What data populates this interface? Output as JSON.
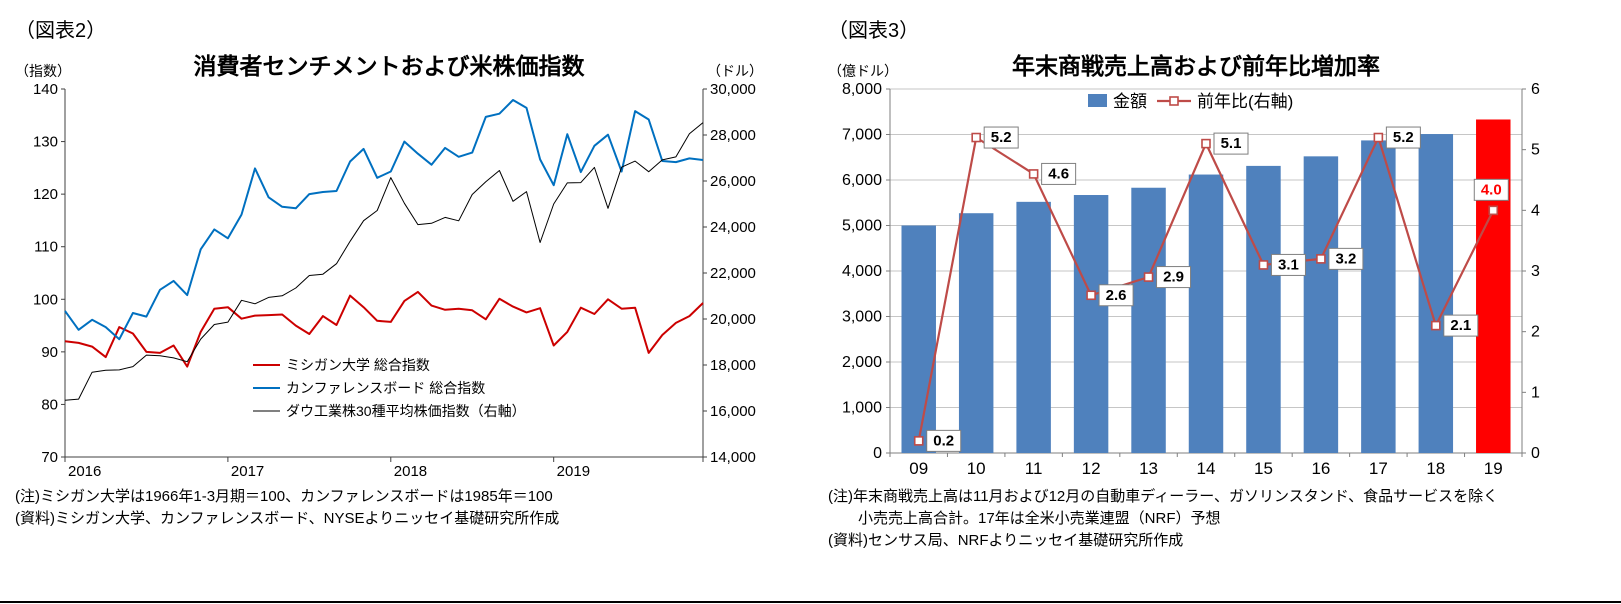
{
  "figure2": {
    "tag": "（図表2）",
    "title": "消費者センチメントおよび米株価指数",
    "left_unit": "（指数）",
    "right_unit": "（ドル）",
    "notes": [
      "(注)ミシガン大学は1966年1-3月期＝100、カンファレンスボードは1985年＝100",
      "(資料)ミシガン大学、カンファレンスボード、NYSEよりニッセイ基礎研究所作成"
    ],
    "chart_data": {
      "type": "line",
      "x_years": [
        "2016",
        "2017",
        "2018",
        "2019"
      ],
      "months_per_year": 12,
      "ylim_left": [
        70,
        140
      ],
      "yticks_left": [
        70,
        80,
        90,
        100,
        110,
        120,
        130,
        140
      ],
      "ylim_right": [
        14000,
        30000
      ],
      "yticks_right": [
        14000,
        16000,
        18000,
        20000,
        22000,
        24000,
        26000,
        28000,
        30000
      ],
      "grid": false,
      "legend_position": "inside-lower-center",
      "series": [
        {
          "name": "ミシガン大学 総合指数",
          "axis": "left",
          "color": "#CC0000",
          "width": 2,
          "values": [
            92.0,
            91.7,
            91.0,
            89.0,
            94.7,
            93.5,
            90.0,
            89.8,
            91.2,
            87.2,
            93.8,
            98.2,
            98.5,
            96.3,
            96.9,
            97.0,
            97.1,
            95.0,
            93.4,
            96.8,
            95.1,
            100.7,
            98.5,
            95.9,
            95.7,
            99.7,
            101.4,
            98.8,
            98.0,
            98.2,
            97.9,
            96.2,
            100.1,
            98.6,
            97.5,
            98.3,
            91.2,
            93.8,
            98.4,
            97.2,
            100.0,
            98.2,
            98.4,
            89.8,
            93.2,
            95.5,
            96.8,
            99.3
          ]
        },
        {
          "name": "カンファレンスボード 総合指数",
          "axis": "left",
          "color": "#0070C0",
          "width": 2,
          "values": [
            97.8,
            94.2,
            96.1,
            94.7,
            92.4,
            97.4,
            96.7,
            101.8,
            103.5,
            100.8,
            109.5,
            113.3,
            111.6,
            116.1,
            124.9,
            119.4,
            117.6,
            117.3,
            120.0,
            120.4,
            120.6,
            126.2,
            128.6,
            123.1,
            124.3,
            130.0,
            127.7,
            125.6,
            128.8,
            127.1,
            127.9,
            134.7,
            135.3,
            137.9,
            136.4,
            126.6,
            121.7,
            131.4,
            124.2,
            129.2,
            131.3,
            124.3,
            135.8,
            134.2,
            126.3,
            126.1,
            126.8,
            126.5
          ]
        },
        {
          "name": "ダウ工業株30種平均株価指数（右軸）",
          "axis": "right",
          "color": "#000000",
          "width": 1,
          "values": [
            16466,
            16517,
            17685,
            17774,
            17787,
            17930,
            18432,
            18401,
            18308,
            18142,
            19124,
            19763,
            19864,
            20812,
            20663,
            20941,
            21009,
            21350,
            21891,
            21948,
            22405,
            23377,
            24272,
            24719,
            26149,
            25029,
            24103,
            24163,
            24416,
            24271,
            25415,
            25965,
            26458,
            25116,
            25538,
            23327,
            25000,
            25916,
            25929,
            26593,
            24815,
            26600,
            26864,
            26403,
            26917,
            27046,
            28051,
            28538
          ]
        }
      ]
    }
  },
  "figure3": {
    "tag": "（図表3）",
    "title": "年末商戦売上高および前年比増加率",
    "left_unit": "（億ドル）",
    "notes": [
      "(注)年末商戦売上高は11月および12月の自動車ディーラー、ガソリンスタンド、食品サービスを除く",
      "　　小売売上高合計。17年は全米小売業連盟（NRF）予想",
      "(資料)センサス局、NRFよりニッセイ基礎研究所作成"
    ],
    "chart_data": {
      "type": "bar+line",
      "categories": [
        "09",
        "10",
        "11",
        "12",
        "13",
        "14",
        "15",
        "16",
        "17",
        "18",
        "19"
      ],
      "bar_series": {
        "name": "金額",
        "values": [
          5000,
          5270,
          5520,
          5670,
          5830,
          6120,
          6310,
          6520,
          6870,
          7010,
          7330
        ],
        "color": "#4F81BD",
        "highlight_index": 10,
        "highlight_color": "#FF0000"
      },
      "line_series": {
        "name": "前年比(右軸)",
        "values": [
          0.2,
          5.2,
          4.6,
          2.6,
          2.9,
          5.1,
          3.1,
          3.2,
          5.2,
          2.1,
          4.0
        ],
        "color": "#BE4B48",
        "label_color": "#000000",
        "last_label_color": "#FF0000"
      },
      "ylim_left": [
        0,
        8000
      ],
      "yticks_left": [
        0,
        1000,
        2000,
        3000,
        4000,
        5000,
        6000,
        7000,
        8000
      ],
      "ylim_right": [
        0,
        6
      ],
      "yticks_right": [
        0,
        1,
        2,
        3,
        4,
        5,
        6
      ],
      "grid": true,
      "legend_position": "inside-top-center"
    }
  }
}
